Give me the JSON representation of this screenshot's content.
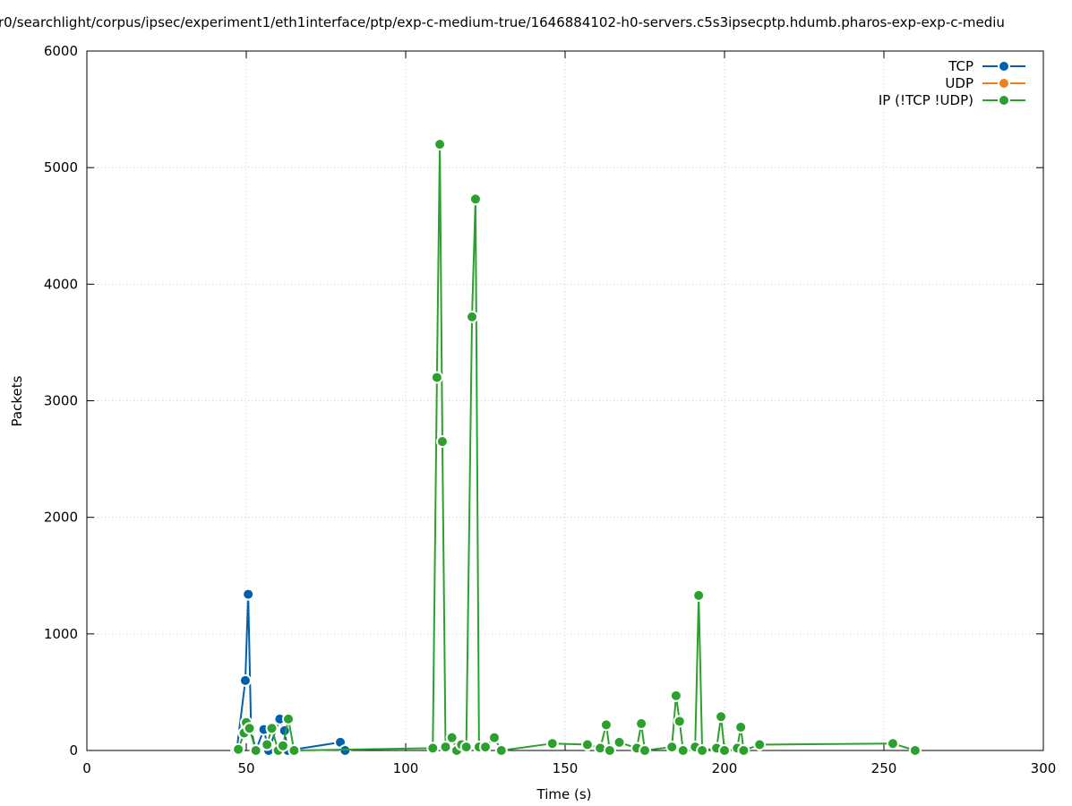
{
  "chart_data": {
    "type": "line",
    "title": "r0/searchlight/corpus/ipsec/experiment1/eth1interface/ptp/exp-c-medium-true/1646884102-h0-servers.c5s3ipsecptp.hdumb.pharos-exp-exp-c-mediu",
    "x_label": "Time (s)",
    "y_label": "Packets",
    "xlim": [
      0,
      300
    ],
    "xticks": [
      0,
      50,
      100,
      150,
      200,
      250,
      300
    ],
    "ylim": [
      0,
      6000
    ],
    "yticks": [
      0,
      1000,
      2000,
      3000,
      4000,
      5000,
      6000
    ],
    "grid": true,
    "legend": "top-right",
    "series": [
      {
        "name": "TCP",
        "color": "#0060ad",
        "x": [
          47,
          49.7,
          50.6,
          51.5,
          53,
          55.5,
          57,
          60.5,
          62,
          63,
          79.5,
          81
        ],
        "values": [
          0,
          600,
          1340,
          180,
          0,
          180,
          0,
          270,
          170,
          0,
          70,
          0
        ]
      },
      {
        "name": "UDP",
        "color": "#ef7f1a",
        "x": [],
        "values": []
      },
      {
        "name": "IP (!TCP  !UDP)",
        "color": "#2ca02c",
        "x": [
          47.5,
          49.3,
          50,
          51,
          53,
          56.5,
          58,
          60,
          61.5,
          63.2,
          65,
          108.5,
          109.8,
          110.7,
          111.5,
          112.5,
          114.5,
          116,
          117.5,
          119,
          120.8,
          121.9,
          123,
          125,
          127.8,
          130,
          146,
          157,
          161,
          162.9,
          164,
          167,
          172.5,
          173.9,
          175,
          183.5,
          184.8,
          185.9,
          187,
          190.8,
          191.9,
          193,
          197.5,
          198.9,
          200,
          204,
          205.1,
          206,
          211,
          252.8,
          259.8
        ],
        "values": [
          10,
          150,
          240,
          190,
          0,
          50,
          190,
          0,
          40,
          270,
          0,
          20,
          3200,
          5200,
          2650,
          30,
          110,
          0,
          50,
          30,
          3720,
          4730,
          30,
          30,
          110,
          0,
          60,
          50,
          20,
          220,
          0,
          70,
          20,
          230,
          0,
          30,
          470,
          250,
          0,
          30,
          1330,
          0,
          20,
          290,
          0,
          20,
          200,
          0,
          50,
          60,
          0
        ]
      }
    ]
  }
}
